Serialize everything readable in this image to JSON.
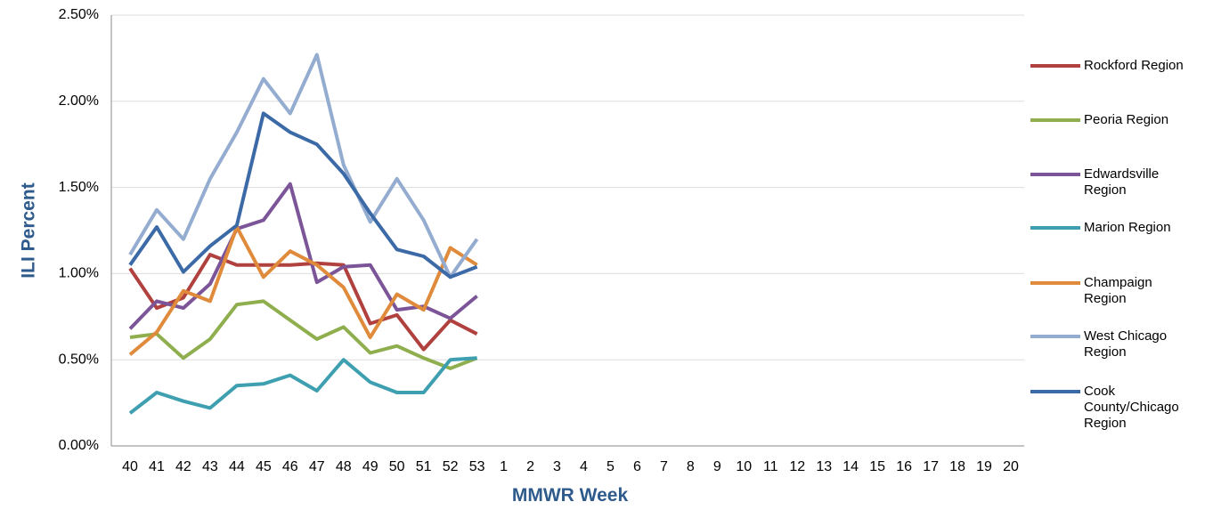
{
  "chart_data": {
    "type": "line",
    "x_label": "MMWR Week",
    "y_label": "ILI Percent",
    "categories": [
      "40",
      "41",
      "42",
      "43",
      "44",
      "45",
      "46",
      "47",
      "48",
      "49",
      "50",
      "51",
      "52",
      "53",
      "1",
      "2",
      "3",
      "4",
      "5",
      "6",
      "7",
      "8",
      "9",
      "10",
      "11",
      "12",
      "13",
      "14",
      "15",
      "16",
      "17",
      "18",
      "19",
      "20"
    ],
    "ylim": [
      0,
      2.5
    ],
    "yticks": [
      {
        "value": 0,
        "label": "0.00%"
      },
      {
        "value": 0.5,
        "label": "0.50%"
      },
      {
        "value": 1,
        "label": "1.00%"
      },
      {
        "value": 1.5,
        "label": "1.50%"
      },
      {
        "value": 2,
        "label": "2.00%"
      },
      {
        "value": 2.5,
        "label": "2.50%"
      }
    ],
    "grid": true,
    "legend": "right",
    "series": [
      {
        "name": "Rockford Region",
        "color": "#b0413e",
        "values": [
          1.03,
          0.8,
          0.86,
          1.11,
          1.05,
          1.05,
          1.05,
          1.06,
          1.05,
          0.71,
          0.76,
          0.56,
          0.73,
          0.65,
          null,
          null,
          null,
          null,
          null,
          null,
          null,
          null,
          null,
          null,
          null,
          null,
          null,
          null,
          null,
          null,
          null,
          null,
          null,
          null
        ]
      },
      {
        "name": "Peoria Region",
        "color": "#8fae4d",
        "values": [
          0.63,
          0.65,
          0.51,
          0.62,
          0.82,
          0.84,
          0.73,
          0.62,
          0.69,
          0.54,
          0.58,
          0.51,
          0.45,
          0.51,
          null,
          null,
          null,
          null,
          null,
          null,
          null,
          null,
          null,
          null,
          null,
          null,
          null,
          null,
          null,
          null,
          null,
          null,
          null,
          null
        ]
      },
      {
        "name": "Edwardsville Region",
        "color": "#7b5598",
        "values": [
          0.68,
          0.84,
          0.8,
          0.94,
          1.26,
          1.31,
          1.52,
          0.95,
          1.04,
          1.05,
          0.79,
          0.81,
          0.74,
          0.87,
          null,
          null,
          null,
          null,
          null,
          null,
          null,
          null,
          null,
          null,
          null,
          null,
          null,
          null,
          null,
          null,
          null,
          null,
          null,
          null
        ]
      },
      {
        "name": "Marion Region",
        "color": "#3d9fb0",
        "values": [
          0.19,
          0.31,
          0.26,
          0.22,
          0.35,
          0.36,
          0.41,
          0.32,
          0.5,
          0.37,
          0.31,
          0.31,
          0.5,
          0.51,
          null,
          null,
          null,
          null,
          null,
          null,
          null,
          null,
          null,
          null,
          null,
          null,
          null,
          null,
          null,
          null,
          null,
          null,
          null,
          null
        ]
      },
      {
        "name": "Champaign Region",
        "color": "#e08b3b",
        "values": [
          0.53,
          0.66,
          0.9,
          0.84,
          1.27,
          0.98,
          1.13,
          1.05,
          0.92,
          0.63,
          0.88,
          0.79,
          1.15,
          1.05,
          null,
          null,
          null,
          null,
          null,
          null,
          null,
          null,
          null,
          null,
          null,
          null,
          null,
          null,
          null,
          null,
          null,
          null,
          null,
          null
        ]
      },
      {
        "name": "West Chicago Region",
        "color": "#94acd0",
        "values": [
          1.11,
          1.37,
          1.2,
          1.55,
          1.82,
          2.13,
          1.93,
          2.27,
          1.63,
          1.3,
          1.55,
          1.31,
          0.98,
          1.2,
          null,
          null,
          null,
          null,
          null,
          null,
          null,
          null,
          null,
          null,
          null,
          null,
          null,
          null,
          null,
          null,
          null,
          null,
          null,
          null
        ]
      },
      {
        "name": "Cook County/Chicago Region",
        "color": "#3b6aa6",
        "values": [
          1.05,
          1.27,
          1.01,
          1.16,
          1.28,
          1.93,
          1.82,
          1.75,
          1.58,
          1.35,
          1.14,
          1.1,
          0.98,
          1.04,
          null,
          null,
          null,
          null,
          null,
          null,
          null,
          null,
          null,
          null,
          null,
          null,
          null,
          null,
          null,
          null,
          null,
          null,
          null,
          null
        ]
      }
    ]
  }
}
